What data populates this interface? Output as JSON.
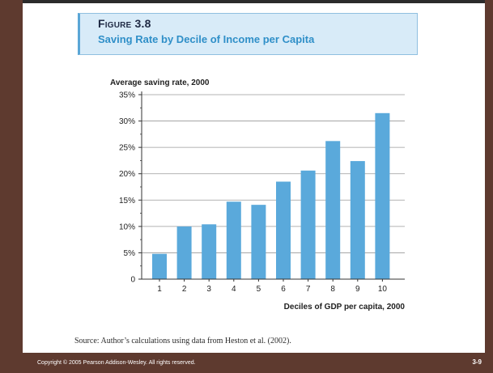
{
  "figure": {
    "label": "Figure 3.8",
    "title": "Saving Rate by Decile of Income per Capita"
  },
  "chart_data": {
    "type": "bar",
    "ylabel": "Average saving rate, 2000",
    "xlabel": "Deciles of GDP per capita, 2000",
    "categories": [
      "1",
      "2",
      "3",
      "4",
      "5",
      "6",
      "7",
      "8",
      "9",
      "10"
    ],
    "values": [
      4.8,
      10.0,
      10.4,
      14.7,
      14.1,
      18.5,
      20.6,
      26.2,
      22.4,
      31.5
    ],
    "ylim": [
      0,
      35
    ],
    "yticks": [
      0,
      5,
      10,
      15,
      20,
      25,
      30,
      35
    ],
    "ytick_labels": [
      "0",
      "5%",
      "10%",
      "15%",
      "20%",
      "25%",
      "30%",
      "35%"
    ],
    "grid": true,
    "bar_color": "#5aa9db"
  },
  "source": "Source: Author’s calculations using data from Heston et al. (2002).",
  "footer": {
    "copyright": "Copyright © 2005 Pearson Addison-Wesley. All rights reserved.",
    "slide_number": "3-9"
  }
}
